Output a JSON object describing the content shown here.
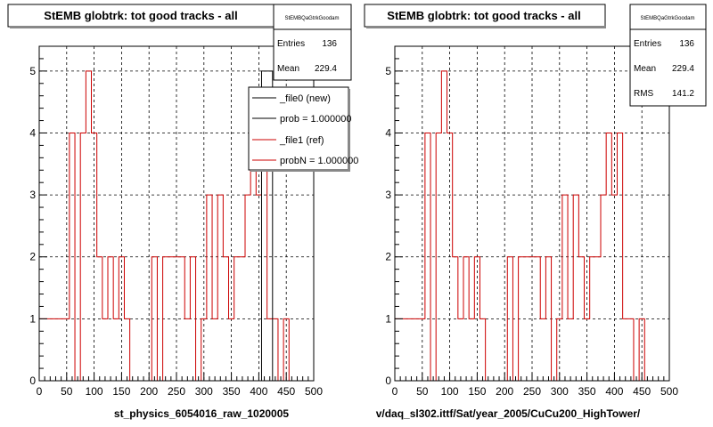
{
  "chart_data": [
    {
      "type": "histogram",
      "title": "StEMB globtrk: tot good tracks - all",
      "xlabel": "st_physics_6054016_raw_1020005",
      "ylabel": "",
      "xlim": [
        0,
        500
      ],
      "ylim": [
        0,
        5.4
      ],
      "xticks": [
        "0",
        "50",
        "100",
        "150",
        "200",
        "250",
        "300",
        "350",
        "400",
        "450",
        "500"
      ],
      "yticks": [
        "0",
        "1",
        "2",
        "3",
        "4",
        "5"
      ],
      "grid": true,
      "stats": {
        "name": "StEMBQaGtrkGoodam",
        "entries_label": "Entries",
        "entries": "136",
        "mean_label": "Mean",
        "mean": "229.4"
      },
      "legend": [
        {
          "label": "_file0 (new)",
          "color": "#000000"
        },
        {
          "label": "prob = 1.000000",
          "color": "#000000"
        },
        {
          "label": "_file1 (ref)",
          "color": "#cc0000"
        },
        {
          "label": "probN = 1.000000",
          "color": "#cc0000"
        }
      ],
      "series": [
        {
          "color": "#cc0000",
          "bin_edges": [
            0,
            55,
            65,
            75,
            85,
            95,
            105,
            115,
            125,
            135,
            145,
            155,
            165,
            175,
            205,
            215,
            225,
            245,
            265,
            275,
            285,
            295,
            305,
            315,
            325,
            335,
            345,
            355,
            365,
            375,
            385,
            395,
            405,
            415,
            425,
            435,
            445,
            455,
            465
          ],
          "values": [
            1,
            4,
            0,
            4,
            5,
            4,
            2,
            1,
            2,
            1,
            2,
            1,
            0,
            0,
            2,
            0,
            2,
            2,
            1,
            2,
            0,
            1,
            3,
            1,
            3,
            2,
            1,
            2,
            2,
            3,
            4,
            3,
            4,
            1,
            1,
            0,
            1,
            0
          ]
        },
        {
          "color": "#000000",
          "bin_edges": [
            405,
            415,
            425
          ],
          "values": [
            5,
            5
          ]
        }
      ]
    },
    {
      "type": "histogram",
      "title": "StEMB globtrk: tot good tracks - all",
      "xlabel": "v/daq_sl302.ittf/Sat/year_2005/CuCu200_HighTower/",
      "ylabel": "",
      "xlim": [
        0,
        500
      ],
      "ylim": [
        0,
        5.4
      ],
      "xticks": [
        "0",
        "50",
        "100",
        "150",
        "200",
        "250",
        "300",
        "350",
        "400",
        "450",
        "500"
      ],
      "yticks": [
        "0",
        "1",
        "2",
        "3",
        "4",
        "5"
      ],
      "grid": true,
      "stats": {
        "name": "StEMBQaGtrkGoodam",
        "entries_label": "Entries",
        "entries": "136",
        "mean_label": "Mean",
        "mean": "229.4",
        "rms_label": "RMS",
        "rms": "141.2"
      },
      "series": [
        {
          "color": "#cc0000",
          "bin_edges": [
            0,
            55,
            65,
            75,
            85,
            95,
            105,
            115,
            125,
            135,
            145,
            155,
            165,
            175,
            205,
            215,
            225,
            245,
            265,
            275,
            285,
            295,
            305,
            315,
            325,
            335,
            345,
            355,
            365,
            375,
            385,
            395,
            405,
            415,
            425,
            435,
            445,
            455,
            465
          ],
          "values": [
            1,
            4,
            0,
            4,
            5,
            4,
            2,
            1,
            2,
            1,
            2,
            1,
            0,
            0,
            2,
            0,
            2,
            2,
            1,
            2,
            0,
            1,
            3,
            1,
            3,
            2,
            1,
            2,
            2,
            3,
            4,
            3,
            4,
            1,
            1,
            0,
            1,
            0
          ]
        }
      ]
    }
  ]
}
